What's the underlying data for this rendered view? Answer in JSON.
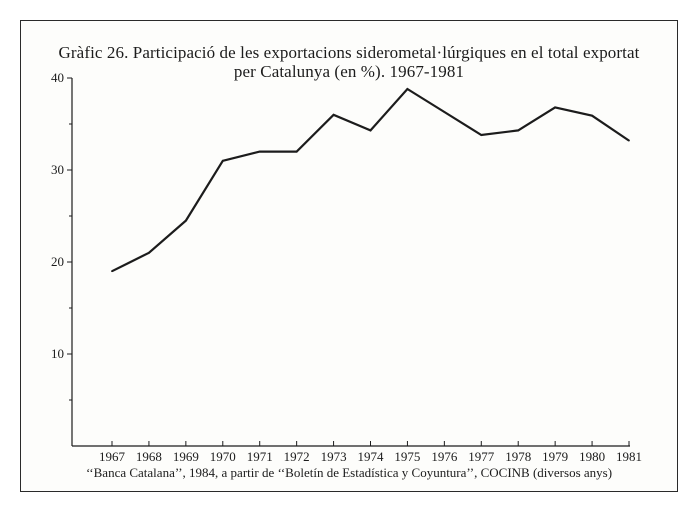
{
  "chart_data": {
    "type": "line",
    "title": "Gràfic 26. Participació de les exportacions siderometal·lúrgiques en el total exportat",
    "subtitle": "per Catalunya (en %). 1967-1981",
    "source": "‘‘Banca Catalana’’, 1984, a partir de ‘‘Boletín de Estadística y Coyuntura’’, COCINB (diversos anys)",
    "x": [
      "1967",
      "1968",
      "1969",
      "1970",
      "1971",
      "1972",
      "1973",
      "1974",
      "1975",
      "1976",
      "1977",
      "1978",
      "1979",
      "1980",
      "1981"
    ],
    "series": [
      {
        "values": [
          19.0,
          21.0,
          24.5,
          31.0,
          32.0,
          32.0,
          36.0,
          34.3,
          38.8,
          36.3,
          33.8,
          34.3,
          36.8,
          35.9,
          33.2
        ]
      }
    ],
    "yticks": [
      "40",
      "30",
      "20",
      "10"
    ],
    "ylim": [
      0,
      40
    ],
    "grid": false,
    "colors": {
      "line": "#1c1c1c",
      "axis": "#1c1c1c"
    }
  }
}
